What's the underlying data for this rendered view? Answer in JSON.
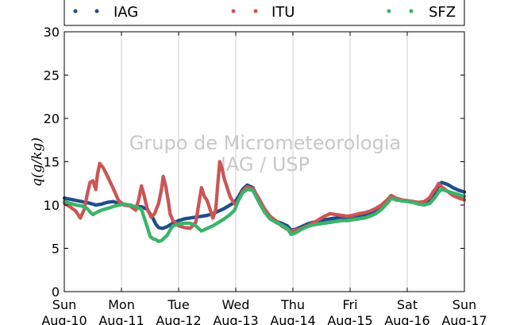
{
  "chart_data": {
    "type": "scatter",
    "ylabel": "q(g/kg)",
    "ylim": [
      0,
      30
    ],
    "yticks": [
      0,
      5,
      10,
      15,
      20,
      25,
      30
    ],
    "xlim": [
      0,
      7
    ],
    "xticks": [
      {
        "x": 0,
        "day": "Sun",
        "date": "Aug-10"
      },
      {
        "x": 1,
        "day": "Mon",
        "date": "Aug-11"
      },
      {
        "x": 2,
        "day": "Tue",
        "date": "Aug-12"
      },
      {
        "x": 3,
        "day": "Wed",
        "date": "Aug-13"
      },
      {
        "x": 4,
        "day": "Thu",
        "date": "Aug-14"
      },
      {
        "x": 5,
        "day": "Fri",
        "date": "Aug-15"
      },
      {
        "x": 6,
        "day": "Sat",
        "date": "Aug-16"
      },
      {
        "x": 7,
        "day": "Sun",
        "date": "Aug-17"
      }
    ],
    "grid": "vertical",
    "watermark": [
      "Grupo de Micrometeorologia",
      "IAG / USP"
    ],
    "legend_position": "top",
    "series": [
      {
        "name": "IAG",
        "color": "#1f4e8c",
        "points": [
          [
            0.0,
            10.8
          ],
          [
            0.15,
            10.6
          ],
          [
            0.3,
            10.4
          ],
          [
            0.45,
            10.2
          ],
          [
            0.55,
            10.0
          ],
          [
            0.65,
            10.1
          ],
          [
            0.75,
            10.3
          ],
          [
            0.85,
            10.4
          ],
          [
            0.95,
            10.2
          ],
          [
            1.05,
            10.0
          ],
          [
            1.15,
            9.9
          ],
          [
            1.25,
            9.8
          ],
          [
            1.35,
            9.8
          ],
          [
            1.45,
            9.5
          ],
          [
            1.5,
            9.0
          ],
          [
            1.55,
            8.5
          ],
          [
            1.6,
            7.8
          ],
          [
            1.65,
            7.4
          ],
          [
            1.72,
            7.3
          ],
          [
            1.8,
            7.5
          ],
          [
            1.9,
            7.9
          ],
          [
            2.0,
            8.2
          ],
          [
            2.1,
            8.4
          ],
          [
            2.2,
            8.5
          ],
          [
            2.3,
            8.6
          ],
          [
            2.4,
            8.7
          ],
          [
            2.5,
            8.8
          ],
          [
            2.6,
            9.0
          ],
          [
            2.7,
            9.3
          ],
          [
            2.8,
            9.6
          ],
          [
            2.9,
            10.0
          ],
          [
            2.98,
            10.3
          ],
          [
            3.05,
            11.0
          ],
          [
            3.12,
            11.8
          ],
          [
            3.2,
            12.3
          ],
          [
            3.3,
            12.0
          ],
          [
            3.4,
            10.6
          ],
          [
            3.5,
            9.4
          ],
          [
            3.6,
            8.6
          ],
          [
            3.7,
            8.1
          ],
          [
            3.8,
            7.9
          ],
          [
            3.9,
            7.6
          ],
          [
            3.97,
            7.1
          ],
          [
            4.05,
            7.2
          ],
          [
            4.15,
            7.5
          ],
          [
            4.25,
            7.8
          ],
          [
            4.35,
            8.0
          ],
          [
            4.45,
            8.1
          ],
          [
            4.55,
            8.3
          ],
          [
            4.65,
            8.4
          ],
          [
            4.75,
            8.5
          ],
          [
            4.85,
            8.6
          ],
          [
            4.95,
            8.6
          ],
          [
            5.05,
            8.7
          ],
          [
            5.15,
            8.8
          ],
          [
            5.25,
            8.9
          ],
          [
            5.35,
            9.1
          ],
          [
            5.45,
            9.3
          ],
          [
            5.55,
            9.7
          ],
          [
            5.65,
            10.2
          ],
          [
            5.72,
            10.8
          ],
          [
            5.8,
            10.6
          ],
          [
            5.9,
            10.5
          ],
          [
            6.0,
            10.5
          ],
          [
            6.1,
            10.4
          ],
          [
            6.2,
            10.2
          ],
          [
            6.3,
            10.1
          ],
          [
            6.4,
            10.4
          ],
          [
            6.45,
            11.0
          ],
          [
            6.5,
            11.6
          ],
          [
            6.55,
            12.2
          ],
          [
            6.6,
            12.6
          ],
          [
            6.7,
            12.4
          ],
          [
            6.8,
            12.0
          ],
          [
            6.9,
            11.7
          ],
          [
            7.0,
            11.5
          ]
        ]
      },
      {
        "name": "ITU",
        "color": "#cc5555",
        "points": [
          [
            0.0,
            10.2
          ],
          [
            0.1,
            9.8
          ],
          [
            0.2,
            9.3
          ],
          [
            0.28,
            8.5
          ],
          [
            0.35,
            9.5
          ],
          [
            0.4,
            11.2
          ],
          [
            0.45,
            12.6
          ],
          [
            0.5,
            12.8
          ],
          [
            0.55,
            11.8
          ],
          [
            0.58,
            13.5
          ],
          [
            0.62,
            14.8
          ],
          [
            0.68,
            14.3
          ],
          [
            0.75,
            13.4
          ],
          [
            0.85,
            12.0
          ],
          [
            0.95,
            10.5
          ],
          [
            1.05,
            10.0
          ],
          [
            1.15,
            9.9
          ],
          [
            1.25,
            9.4
          ],
          [
            1.3,
            10.6
          ],
          [
            1.35,
            12.2
          ],
          [
            1.4,
            11.0
          ],
          [
            1.45,
            9.6
          ],
          [
            1.52,
            8.6
          ],
          [
            1.58,
            9.0
          ],
          [
            1.65,
            10.2
          ],
          [
            1.7,
            11.8
          ],
          [
            1.73,
            13.3
          ],
          [
            1.78,
            12.0
          ],
          [
            1.82,
            10.4
          ],
          [
            1.85,
            9.0
          ],
          [
            1.9,
            8.2
          ],
          [
            2.0,
            7.6
          ],
          [
            2.1,
            7.4
          ],
          [
            2.2,
            7.3
          ],
          [
            2.3,
            8.0
          ],
          [
            2.35,
            10.0
          ],
          [
            2.4,
            12.0
          ],
          [
            2.45,
            11.0
          ],
          [
            2.5,
            10.5
          ],
          [
            2.55,
            9.5
          ],
          [
            2.6,
            8.5
          ],
          [
            2.65,
            9.5
          ],
          [
            2.68,
            12.0
          ],
          [
            2.72,
            15.0
          ],
          [
            2.76,
            14.2
          ],
          [
            2.8,
            13.0
          ],
          [
            2.85,
            12.0
          ],
          [
            2.9,
            11.0
          ],
          [
            2.95,
            10.4
          ],
          [
            3.0,
            10.0
          ],
          [
            3.05,
            10.6
          ],
          [
            3.12,
            11.6
          ],
          [
            3.2,
            12.1
          ],
          [
            3.3,
            11.9
          ],
          [
            3.4,
            10.8
          ],
          [
            3.5,
            9.6
          ],
          [
            3.6,
            8.7
          ],
          [
            3.7,
            8.2
          ],
          [
            3.8,
            7.6
          ],
          [
            3.9,
            7.2
          ],
          [
            3.97,
            7.0
          ],
          [
            4.05,
            7.1
          ],
          [
            4.15,
            7.3
          ],
          [
            4.25,
            7.6
          ],
          [
            4.35,
            7.9
          ],
          [
            4.45,
            8.3
          ],
          [
            4.55,
            8.7
          ],
          [
            4.65,
            9.0
          ],
          [
            4.75,
            8.9
          ],
          [
            4.85,
            8.8
          ],
          [
            4.95,
            8.7
          ],
          [
            5.05,
            8.8
          ],
          [
            5.15,
            9.0
          ],
          [
            5.25,
            9.1
          ],
          [
            5.35,
            9.3
          ],
          [
            5.45,
            9.6
          ],
          [
            5.55,
            10.0
          ],
          [
            5.65,
            10.6
          ],
          [
            5.72,
            11.1
          ],
          [
            5.8,
            10.8
          ],
          [
            5.9,
            10.6
          ],
          [
            6.0,
            10.5
          ],
          [
            6.1,
            10.4
          ],
          [
            6.2,
            10.3
          ],
          [
            6.3,
            10.4
          ],
          [
            6.4,
            10.9
          ],
          [
            6.45,
            11.5
          ],
          [
            6.5,
            11.9
          ],
          [
            6.55,
            12.5
          ],
          [
            6.6,
            12.1
          ],
          [
            6.7,
            11.6
          ],
          [
            6.8,
            11.1
          ],
          [
            6.9,
            10.8
          ],
          [
            7.0,
            10.6
          ]
        ]
      },
      {
        "name": "SFZ",
        "color": "#3cb36a",
        "points": [
          [
            0.0,
            10.4
          ],
          [
            0.1,
            10.2
          ],
          [
            0.2,
            10.0
          ],
          [
            0.3,
            9.9
          ],
          [
            0.4,
            9.6
          ],
          [
            0.45,
            9.2
          ],
          [
            0.5,
            8.9
          ],
          [
            0.55,
            9.1
          ],
          [
            0.65,
            9.4
          ],
          [
            0.75,
            9.6
          ],
          [
            0.85,
            9.8
          ],
          [
            0.95,
            10.0
          ],
          [
            1.05,
            10.1
          ],
          [
            1.15,
            10.0
          ],
          [
            1.25,
            9.8
          ],
          [
            1.35,
            9.5
          ],
          [
            1.4,
            8.5
          ],
          [
            1.45,
            7.5
          ],
          [
            1.5,
            6.4
          ],
          [
            1.55,
            6.1
          ],
          [
            1.6,
            6.0
          ],
          [
            1.65,
            5.8
          ],
          [
            1.7,
            5.9
          ],
          [
            1.75,
            6.2
          ],
          [
            1.8,
            6.5
          ],
          [
            1.85,
            7.1
          ],
          [
            1.9,
            7.6
          ],
          [
            2.0,
            7.8
          ],
          [
            2.1,
            7.9
          ],
          [
            2.2,
            7.9
          ],
          [
            2.3,
            7.6
          ],
          [
            2.4,
            7.0
          ],
          [
            2.5,
            7.3
          ],
          [
            2.6,
            7.6
          ],
          [
            2.7,
            8.0
          ],
          [
            2.8,
            8.4
          ],
          [
            2.9,
            8.9
          ],
          [
            2.98,
            9.4
          ],
          [
            3.05,
            10.6
          ],
          [
            3.12,
            11.4
          ],
          [
            3.2,
            11.8
          ],
          [
            3.3,
            11.7
          ],
          [
            3.4,
            10.4
          ],
          [
            3.5,
            9.2
          ],
          [
            3.6,
            8.4
          ],
          [
            3.7,
            8.0
          ],
          [
            3.8,
            7.7
          ],
          [
            3.9,
            7.3
          ],
          [
            3.97,
            6.6
          ],
          [
            4.05,
            6.8
          ],
          [
            4.15,
            7.2
          ],
          [
            4.25,
            7.5
          ],
          [
            4.35,
            7.7
          ],
          [
            4.45,
            7.8
          ],
          [
            4.55,
            7.9
          ],
          [
            4.65,
            8.0
          ],
          [
            4.75,
            8.1
          ],
          [
            4.85,
            8.2
          ],
          [
            4.95,
            8.2
          ],
          [
            5.05,
            8.3
          ],
          [
            5.15,
            8.4
          ],
          [
            5.25,
            8.5
          ],
          [
            5.35,
            8.7
          ],
          [
            5.45,
            9.0
          ],
          [
            5.55,
            9.5
          ],
          [
            5.65,
            10.2
          ],
          [
            5.72,
            10.8
          ],
          [
            5.8,
            10.6
          ],
          [
            5.9,
            10.5
          ],
          [
            6.0,
            10.4
          ],
          [
            6.1,
            10.3
          ],
          [
            6.2,
            10.1
          ],
          [
            6.3,
            10.0
          ],
          [
            6.4,
            10.2
          ],
          [
            6.45,
            10.6
          ],
          [
            6.5,
            11.0
          ],
          [
            6.55,
            11.5
          ],
          [
            6.6,
            11.8
          ],
          [
            6.7,
            11.6
          ],
          [
            6.8,
            11.4
          ],
          [
            6.9,
            11.2
          ],
          [
            7.0,
            11.0
          ]
        ]
      }
    ]
  }
}
